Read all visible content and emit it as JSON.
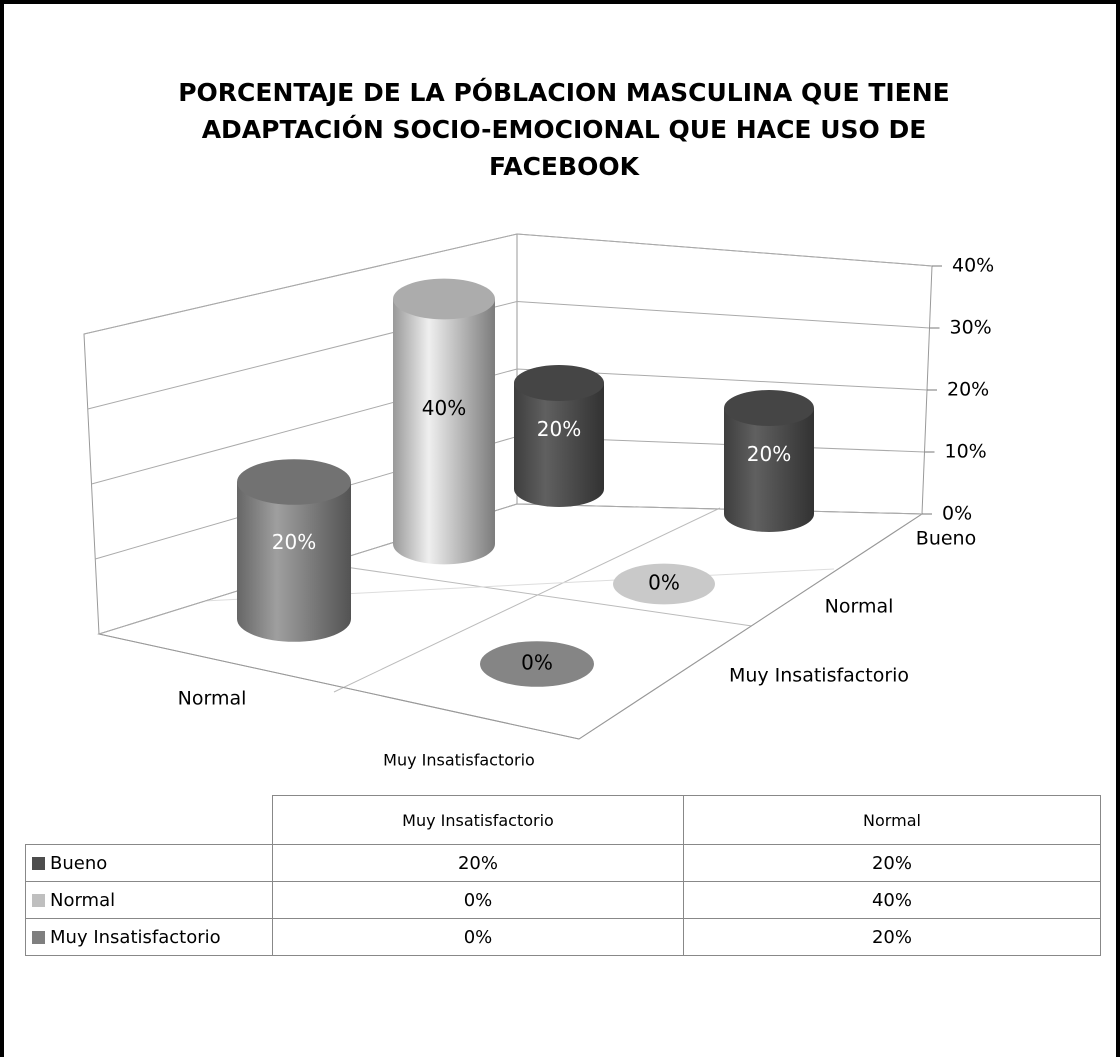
{
  "chart_data": {
    "type": "bar3d",
    "title": "PORCENTAJE DE LA PÓBLACION MASCULINA QUE TIENE ADAPTACIÓN SOCIO-EMOCIONAL QUE HACE USO DE FACEBOOK",
    "categories": [
      "Muy Insatisfactorio",
      "Normal"
    ],
    "series": [
      {
        "name": "Bueno",
        "color": "#4d4d4d",
        "values": [
          20,
          20
        ],
        "value_labels": [
          "20%",
          "20%"
        ]
      },
      {
        "name": "Normal",
        "color": "#bfbfbf",
        "values": [
          0,
          40
        ],
        "value_labels": [
          "0%",
          "40%"
        ]
      },
      {
        "name": "Muy Insatisfactorio",
        "color": "#7f7f7f",
        "values": [
          0,
          20
        ],
        "value_labels": [
          "0%",
          "20%"
        ]
      }
    ],
    "ylim": [
      0,
      40
    ],
    "yticks": [
      {
        "value": 0,
        "label": "0%"
      },
      {
        "value": 10,
        "label": "10%"
      },
      {
        "value": 20,
        "label": "20%"
      },
      {
        "value": 30,
        "label": "30%"
      },
      {
        "value": 40,
        "label": "40%"
      }
    ],
    "grid": true,
    "data_table": true
  }
}
